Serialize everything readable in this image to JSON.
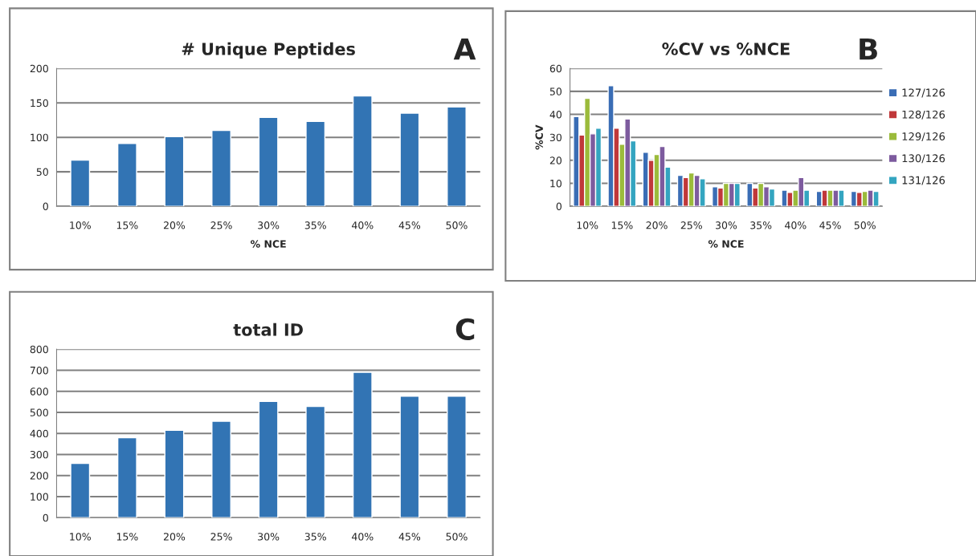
{
  "chart_data": [
    {
      "type": "bar",
      "title": "# Unique Peptides",
      "xlabel": "% NCE",
      "annotations": [
        "A"
      ],
      "categories": [
        "10%",
        "15%",
        "20%",
        "25%",
        "30%",
        "35%",
        "40%",
        "45%",
        "50%"
      ],
      "series": [
        {
          "color": "#3274b4",
          "values": [
            67,
            91,
            101,
            110,
            129,
            123,
            160,
            135,
            144
          ]
        }
      ],
      "ylim": [
        0,
        200
      ],
      "yticks": [
        0,
        50,
        100,
        150,
        200
      ],
      "grid": "y",
      "legend": false
    },
    {
      "type": "bar",
      "title": "%CV vs %NCE",
      "xlabel": "% NCE",
      "ylabel": "%CV",
      "annotations": [
        "B"
      ],
      "categories": [
        "10%",
        "15%",
        "20%",
        "25%",
        "30%",
        "35%",
        "40%",
        "45%",
        "50%"
      ],
      "series": [
        {
          "name": "127/126",
          "color": "#3a6db5",
          "values": [
            39,
            52.5,
            23.5,
            13.5,
            8.5,
            10,
            7,
            6.5,
            6.5
          ]
        },
        {
          "name": "128/126",
          "color": "#c0383a",
          "values": [
            31,
            34,
            20,
            12.5,
            8,
            8,
            6,
            7,
            6
          ]
        },
        {
          "name": "129/126",
          "color": "#9bbb3b",
          "values": [
            47,
            27,
            22.5,
            14.5,
            10,
            10,
            7,
            7,
            6.5
          ]
        },
        {
          "name": "130/126",
          "color": "#7d5b9e",
          "values": [
            31.5,
            38,
            26,
            13.5,
            10,
            8.5,
            12.5,
            7,
            7
          ]
        },
        {
          "name": "131/126",
          "color": "#34a5c0",
          "values": [
            34,
            28.5,
            17,
            12,
            10,
            7.5,
            7,
            7,
            6.5
          ]
        }
      ],
      "ylim": [
        0,
        60
      ],
      "yticks": [
        0,
        10,
        20,
        30,
        40,
        50,
        60
      ],
      "grid": "y",
      "legend": "right"
    },
    {
      "type": "bar",
      "title": "total ID",
      "annotations": [
        "C"
      ],
      "categories": [
        "10%",
        "15%",
        "20%",
        "25%",
        "30%",
        "35%",
        "40%",
        "45%",
        "50%"
      ],
      "series": [
        {
          "color": "#3274b4",
          "values": [
            258,
            380,
            415,
            458,
            552,
            528,
            690,
            577,
            577
          ]
        }
      ],
      "ylim": [
        0,
        800
      ],
      "yticks": [
        0,
        100,
        200,
        300,
        400,
        500,
        600,
        700,
        800
      ],
      "grid": "y",
      "legend": false
    }
  ]
}
